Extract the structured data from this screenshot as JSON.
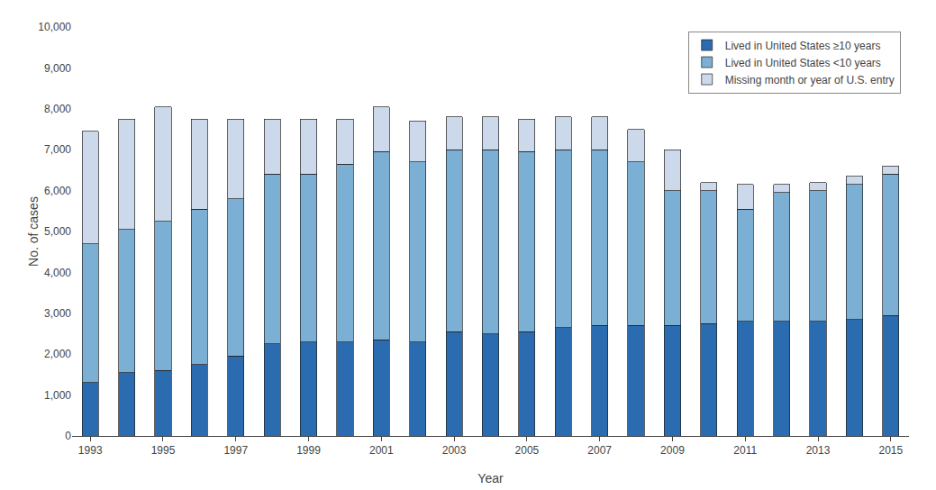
{
  "chart_data": {
    "type": "bar",
    "stacked": true,
    "categories": [
      "1993",
      null,
      "1995",
      null,
      "1997",
      null,
      "1999",
      null,
      "2001",
      null,
      "2003",
      null,
      "2005",
      null,
      "2007",
      null,
      "2009",
      null,
      "2011",
      null,
      "2013",
      null,
      "2015"
    ],
    "series": [
      {
        "name": "Lived in United States ≥10 years",
        "color": "#2b6cb0",
        "values": [
          1300,
          1550,
          1600,
          1750,
          1950,
          2250,
          2300,
          2300,
          2350,
          2300,
          2550,
          2500,
          2550,
          2650,
          2700,
          2700,
          2700,
          2750,
          2800,
          2800,
          2800,
          2850,
          2950
        ]
      },
      {
        "name": "Lived in United States <10 years",
        "color": "#7bafd4",
        "values": [
          3400,
          3500,
          3650,
          3800,
          3850,
          4150,
          4100,
          4350,
          4600,
          4400,
          4450,
          4500,
          4400,
          4350,
          4300,
          4000,
          3300,
          3250,
          2750,
          3150,
          3200,
          3300,
          3450
        ]
      },
      {
        "name": "Missing month or year of U.S. entry",
        "color": "#ccd9ea",
        "values": [
          2750,
          2700,
          2800,
          2200,
          1950,
          1350,
          1350,
          1100,
          1100,
          1000,
          800,
          800,
          800,
          800,
          800,
          800,
          1000,
          200,
          600,
          200,
          200,
          200,
          200
        ]
      }
    ],
    "xlabel": "Year",
    "ylabel": "No. of cases",
    "ylim": [
      0,
      10000
    ],
    "yticks": [
      0,
      {
        "value": 1000,
        "label": "1,000"
      },
      {
        "value": 2000,
        "label": "2,000"
      },
      {
        "value": 3000,
        "label": "3,000"
      },
      {
        "value": 4000,
        "label": "4,000"
      },
      {
        "value": 5000,
        "label": "5,000"
      },
      {
        "value": 6000,
        "label": "6,000"
      },
      {
        "value": 7000,
        "label": "7,000"
      },
      {
        "value": 8000,
        "label": "8,000"
      },
      {
        "value": 9000,
        "label": "9,000"
      },
      {
        "value": 10000,
        "label": "10,000"
      }
    ],
    "grid": false,
    "legend": "upper right"
  }
}
